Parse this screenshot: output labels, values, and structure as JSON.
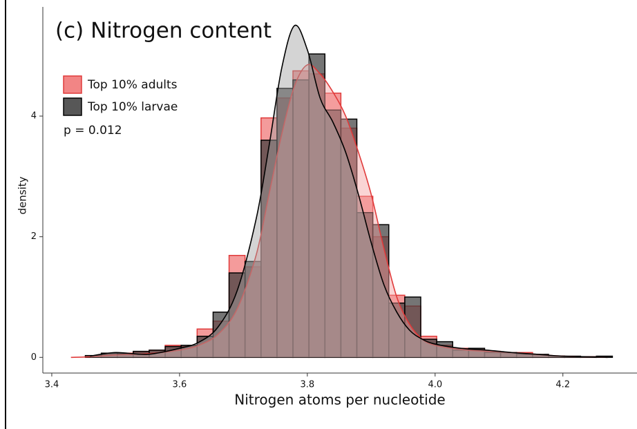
{
  "chart_data": {
    "type": "histogram",
    "title": "(c) Nitrogen content",
    "annotation": "p = 0.012",
    "xlabel": "Nitrogen atoms per nucleotide",
    "ylabel": "density",
    "bins": [
      3.4525,
      3.4775,
      3.5025,
      3.5275,
      3.5525,
      3.5775,
      3.6025,
      3.6275,
      3.6525,
      3.6775,
      3.7025,
      3.7275,
      3.7525,
      3.7775,
      3.8025,
      3.8275,
      3.8525,
      3.8775,
      3.9025,
      3.9275,
      3.9525,
      3.9775,
      4.0025,
      4.0275,
      4.0525,
      4.0775,
      4.1025,
      4.1275,
      4.1525,
      4.1775,
      4.2025,
      4.2275,
      4.2525,
      4.2775
    ],
    "density_x": [
      3.43,
      3.46,
      3.5,
      3.55,
      3.6,
      3.63,
      3.66,
      3.69,
      3.72,
      3.74,
      3.76,
      3.78,
      3.8,
      3.82,
      3.84,
      3.86,
      3.88,
      3.9,
      3.92,
      3.94,
      3.96,
      3.98,
      4.0,
      4.04,
      4.08,
      4.12,
      4.16,
      4.2,
      4.24,
      4.27
    ],
    "series": [
      {
        "name": "Top 10% adults",
        "color": "#e03a3a",
        "fill": "#f07070",
        "density_fill": "#f4a0a0",
        "values": [
          0,
          0.05,
          0.07,
          0.09,
          0.12,
          0.2,
          0.18,
          0.47,
          0.6,
          1.69,
          1.5,
          3.97,
          4.3,
          4.75,
          4.7,
          4.38,
          3.8,
          2.67,
          2.0,
          1.03,
          0.85,
          0.35,
          0.2,
          0.15,
          0.13,
          0.1,
          0.07,
          0.08,
          0.04,
          0.02,
          0.01,
          0.01,
          0
        ],
        "density": [
          0,
          0.01,
          0.04,
          0.06,
          0.12,
          0.2,
          0.38,
          0.8,
          1.7,
          2.7,
          3.7,
          4.5,
          4.85,
          4.7,
          4.4,
          4.0,
          3.4,
          2.7,
          1.8,
          1.0,
          0.55,
          0.3,
          0.2,
          0.13,
          0.1,
          0.08,
          0.05,
          0.02,
          0.01,
          0
        ]
      },
      {
        "name": "Top 10% larvae",
        "color": "#000000",
        "fill": "#3a3a3a",
        "density_fill": "#a0a0a0",
        "values": [
          0.03,
          0.07,
          0.06,
          0.1,
          0.12,
          0.18,
          0.2,
          0.35,
          0.75,
          1.4,
          1.59,
          3.6,
          4.46,
          4.6,
          5.03,
          4.1,
          3.95,
          2.4,
          2.2,
          0.9,
          1.0,
          0.3,
          0.26,
          0.12,
          0.15,
          0.08,
          0.08,
          0.05,
          0.05,
          0.02,
          0.02,
          0.01,
          0.02
        ],
        "density": [
          null,
          0.02,
          0.08,
          0.05,
          0.15,
          0.25,
          0.5,
          1.1,
          2.3,
          3.5,
          4.8,
          5.5,
          5.1,
          4.3,
          3.9,
          3.4,
          2.7,
          1.9,
          1.2,
          0.75,
          0.45,
          0.3,
          0.22,
          0.15,
          0.12,
          0.08,
          0.05,
          0.02,
          0.01,
          0
        ]
      }
    ],
    "xlim": [
      3.386,
      4.316
    ],
    "ylim": [
      -0.26,
      5.81
    ],
    "xticks": [
      3.4,
      3.6,
      3.8,
      {
        "value": 4.0,
        "label": "4.0"
      },
      4.2
    ],
    "yticks": [
      0,
      2,
      4
    ]
  }
}
